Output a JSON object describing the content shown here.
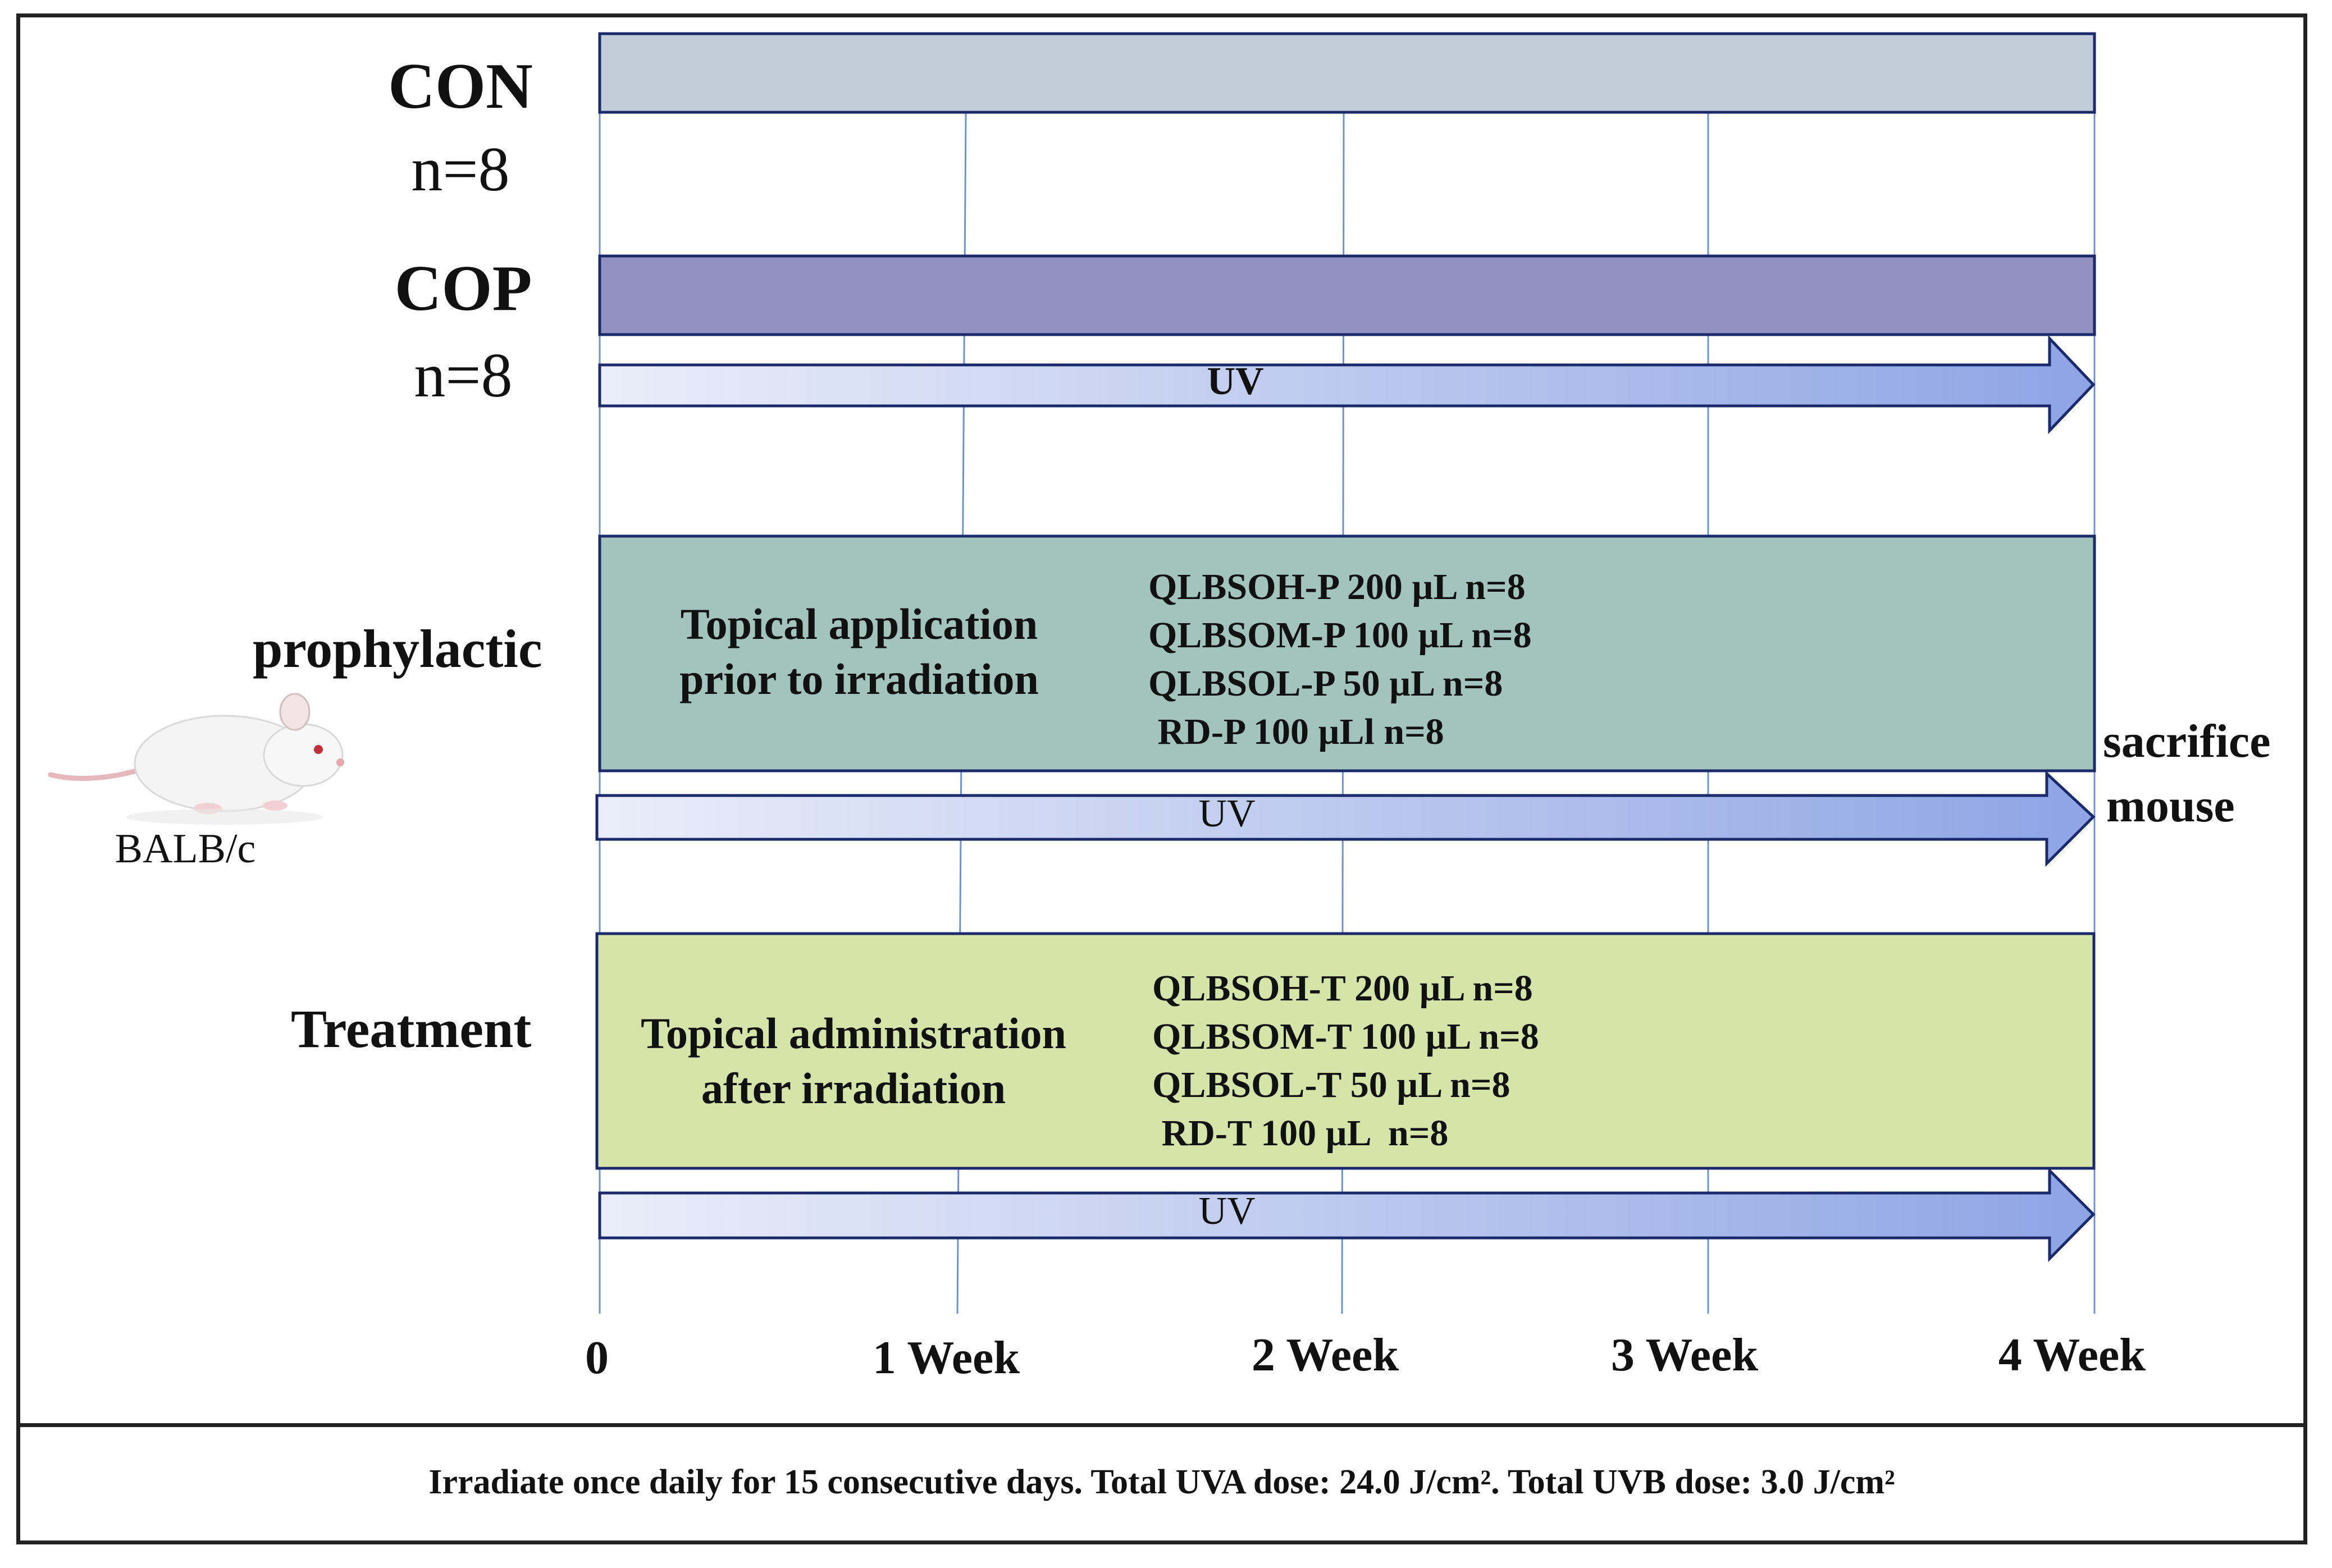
{
  "groups": {
    "con": {
      "name": "CON",
      "n": "n=8",
      "color": "#c3cdda"
    },
    "cop": {
      "name": "COP",
      "n": "n=8",
      "color": "#9391c2"
    }
  },
  "prophylactic": {
    "label": "prophylactic",
    "description_lines": [
      "Topical application",
      "prior to irradiation"
    ],
    "subgroups": [
      "QLBSOH-P 200 µL  n=8",
      "QLBSOM-P 100 µL n=8",
      "QLBSOL-P 50 µL n=8",
      " RD-P 100 µLl n=8"
    ],
    "color": "#a3c4ba"
  },
  "treatment": {
    "label": "Treatment",
    "description_lines": [
      "Topical administration",
      "after irradiation"
    ],
    "subgroups": [
      "QLBSOH-T 200 µL  n=8",
      "QLBSOM-T 100 µL  n=8",
      "QLBSOL-T 50 µL n=8",
      " RD-T 100 µL  n=8"
    ],
    "color": "#d6e4aa"
  },
  "uv_arrows": [
    "UV",
    "UV",
    "UV"
  ],
  "uv_gradient": {
    "start": "#eaedf9",
    "end": "#8ea4e4"
  },
  "timeline": {
    "ticks": [
      "0",
      "1 Week",
      "2 Week",
      "3 Week",
      "4 Week"
    ]
  },
  "animal": {
    "strain": "BALB/c",
    "icon": "white-mouse-icon"
  },
  "endpoint": {
    "lines": [
      "sacrifice",
      "mouse"
    ]
  },
  "footnote": "Irradiate once daily for 15 consecutive days. Total UVA dose: 24.0 J/cm². Total UVB dose: 3.0 J/cm²"
}
